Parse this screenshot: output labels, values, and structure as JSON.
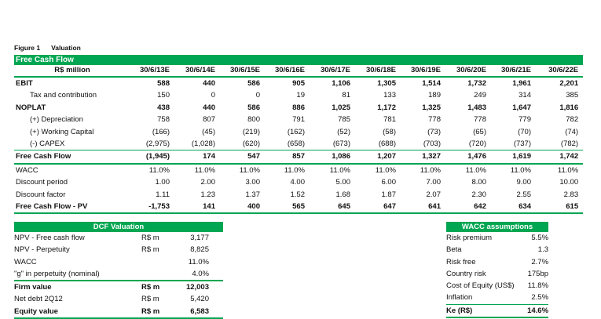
{
  "figure": {
    "number": "Figure 1",
    "title": "Valuation"
  },
  "fcf": {
    "band_title": "Free Cash Flow",
    "unit_label": "R$ million",
    "years": [
      "30/6/13E",
      "30/6/14E",
      "30/6/15E",
      "30/6/16E",
      "30/6/17E",
      "30/6/18E",
      "30/6/19E",
      "30/6/20E",
      "30/6/21E",
      "30/6/22E"
    ],
    "rows": [
      {
        "label": "EBIT",
        "values": [
          "588",
          "440",
          "586",
          "905",
          "1,106",
          "1,305",
          "1,514",
          "1,732",
          "1,961",
          "2,201"
        ]
      },
      {
        "label": "Tax and contribution",
        "values": [
          "150",
          "0",
          "0",
          "19",
          "81",
          "133",
          "189",
          "249",
          "314",
          "385"
        ]
      },
      {
        "label": "NOPLAT",
        "values": [
          "438",
          "440",
          "586",
          "886",
          "1,025",
          "1,172",
          "1,325",
          "1,483",
          "1,647",
          "1,816"
        ]
      },
      {
        "label": "(+) Depreciation",
        "values": [
          "758",
          "807",
          "800",
          "791",
          "785",
          "781",
          "778",
          "778",
          "779",
          "782"
        ]
      },
      {
        "label": "(+) Working Capital",
        "values": [
          "(166)",
          "(45)",
          "(219)",
          "(162)",
          "(52)",
          "(58)",
          "(73)",
          "(65)",
          "(70)",
          "(74)"
        ]
      },
      {
        "label": "(-) CAPEX",
        "values": [
          "(2,975)",
          "(1,028)",
          "(620)",
          "(658)",
          "(673)",
          "(688)",
          "(703)",
          "(720)",
          "(737)",
          "(782)"
        ]
      },
      {
        "label": "Free Cash Flow",
        "values": [
          "(1,945)",
          "174",
          "547",
          "857",
          "1,086",
          "1,207",
          "1,327",
          "1,476",
          "1,619",
          "1,742"
        ]
      },
      {
        "label": "WACC",
        "values": [
          "11.0%",
          "11.0%",
          "11.0%",
          "11.0%",
          "11.0%",
          "11.0%",
          "11.0%",
          "11.0%",
          "11.0%",
          "11.0%"
        ]
      },
      {
        "label": "Discount period",
        "values": [
          "1.00",
          "2.00",
          "3.00",
          "4.00",
          "5.00",
          "6.00",
          "7.00",
          "8.00",
          "9.00",
          "10.00"
        ]
      },
      {
        "label": "Discount factor",
        "values": [
          "1.11",
          "1.23",
          "1.37",
          "1.52",
          "1.68",
          "1.87",
          "2.07",
          "2.30",
          "2.55",
          "2.83"
        ]
      },
      {
        "label": "Free Cash Flow - PV",
        "values": [
          "-1,753",
          "141",
          "400",
          "565",
          "645",
          "647",
          "641",
          "642",
          "634",
          "615"
        ]
      }
    ]
  },
  "dcf": {
    "band_title": "DCF Valuation",
    "rows": [
      {
        "label": "NPV - Free cash flow",
        "unit": "R$ m",
        "value": "3,177"
      },
      {
        "label": "NPV - Perpetuity",
        "unit": "R$ m",
        "value": "8,825"
      },
      {
        "label": "WACC",
        "unit": "",
        "value": "11.0%"
      },
      {
        "label": "\"g\" in perpetuity (nominal)",
        "unit": "",
        "value": "4.0%"
      },
      {
        "label": "Firm value",
        "unit": "R$ m",
        "value": "12,003"
      },
      {
        "label": "Net debt 2Q12",
        "unit": "R$ m",
        "value": "5,420"
      },
      {
        "label": "Equity value",
        "unit": "R$ m",
        "value": "6,583"
      }
    ]
  },
  "wacc": {
    "band_title": "WACC assumptions",
    "rows": [
      {
        "label": "Risk premium",
        "value": "5.5%"
      },
      {
        "label": "Beta",
        "value": "1.3"
      },
      {
        "label": "Risk free",
        "value": "2.7%"
      },
      {
        "label": "Country risk",
        "value": "175bp"
      },
      {
        "label": "Cost of Equity (US$)",
        "value": "11.8%"
      },
      {
        "label": "Inflation",
        "value": "2.5%"
      },
      {
        "label": "Ke (R$)",
        "value": "14.6%"
      }
    ]
  },
  "colors": {
    "accent": "#00a651"
  }
}
